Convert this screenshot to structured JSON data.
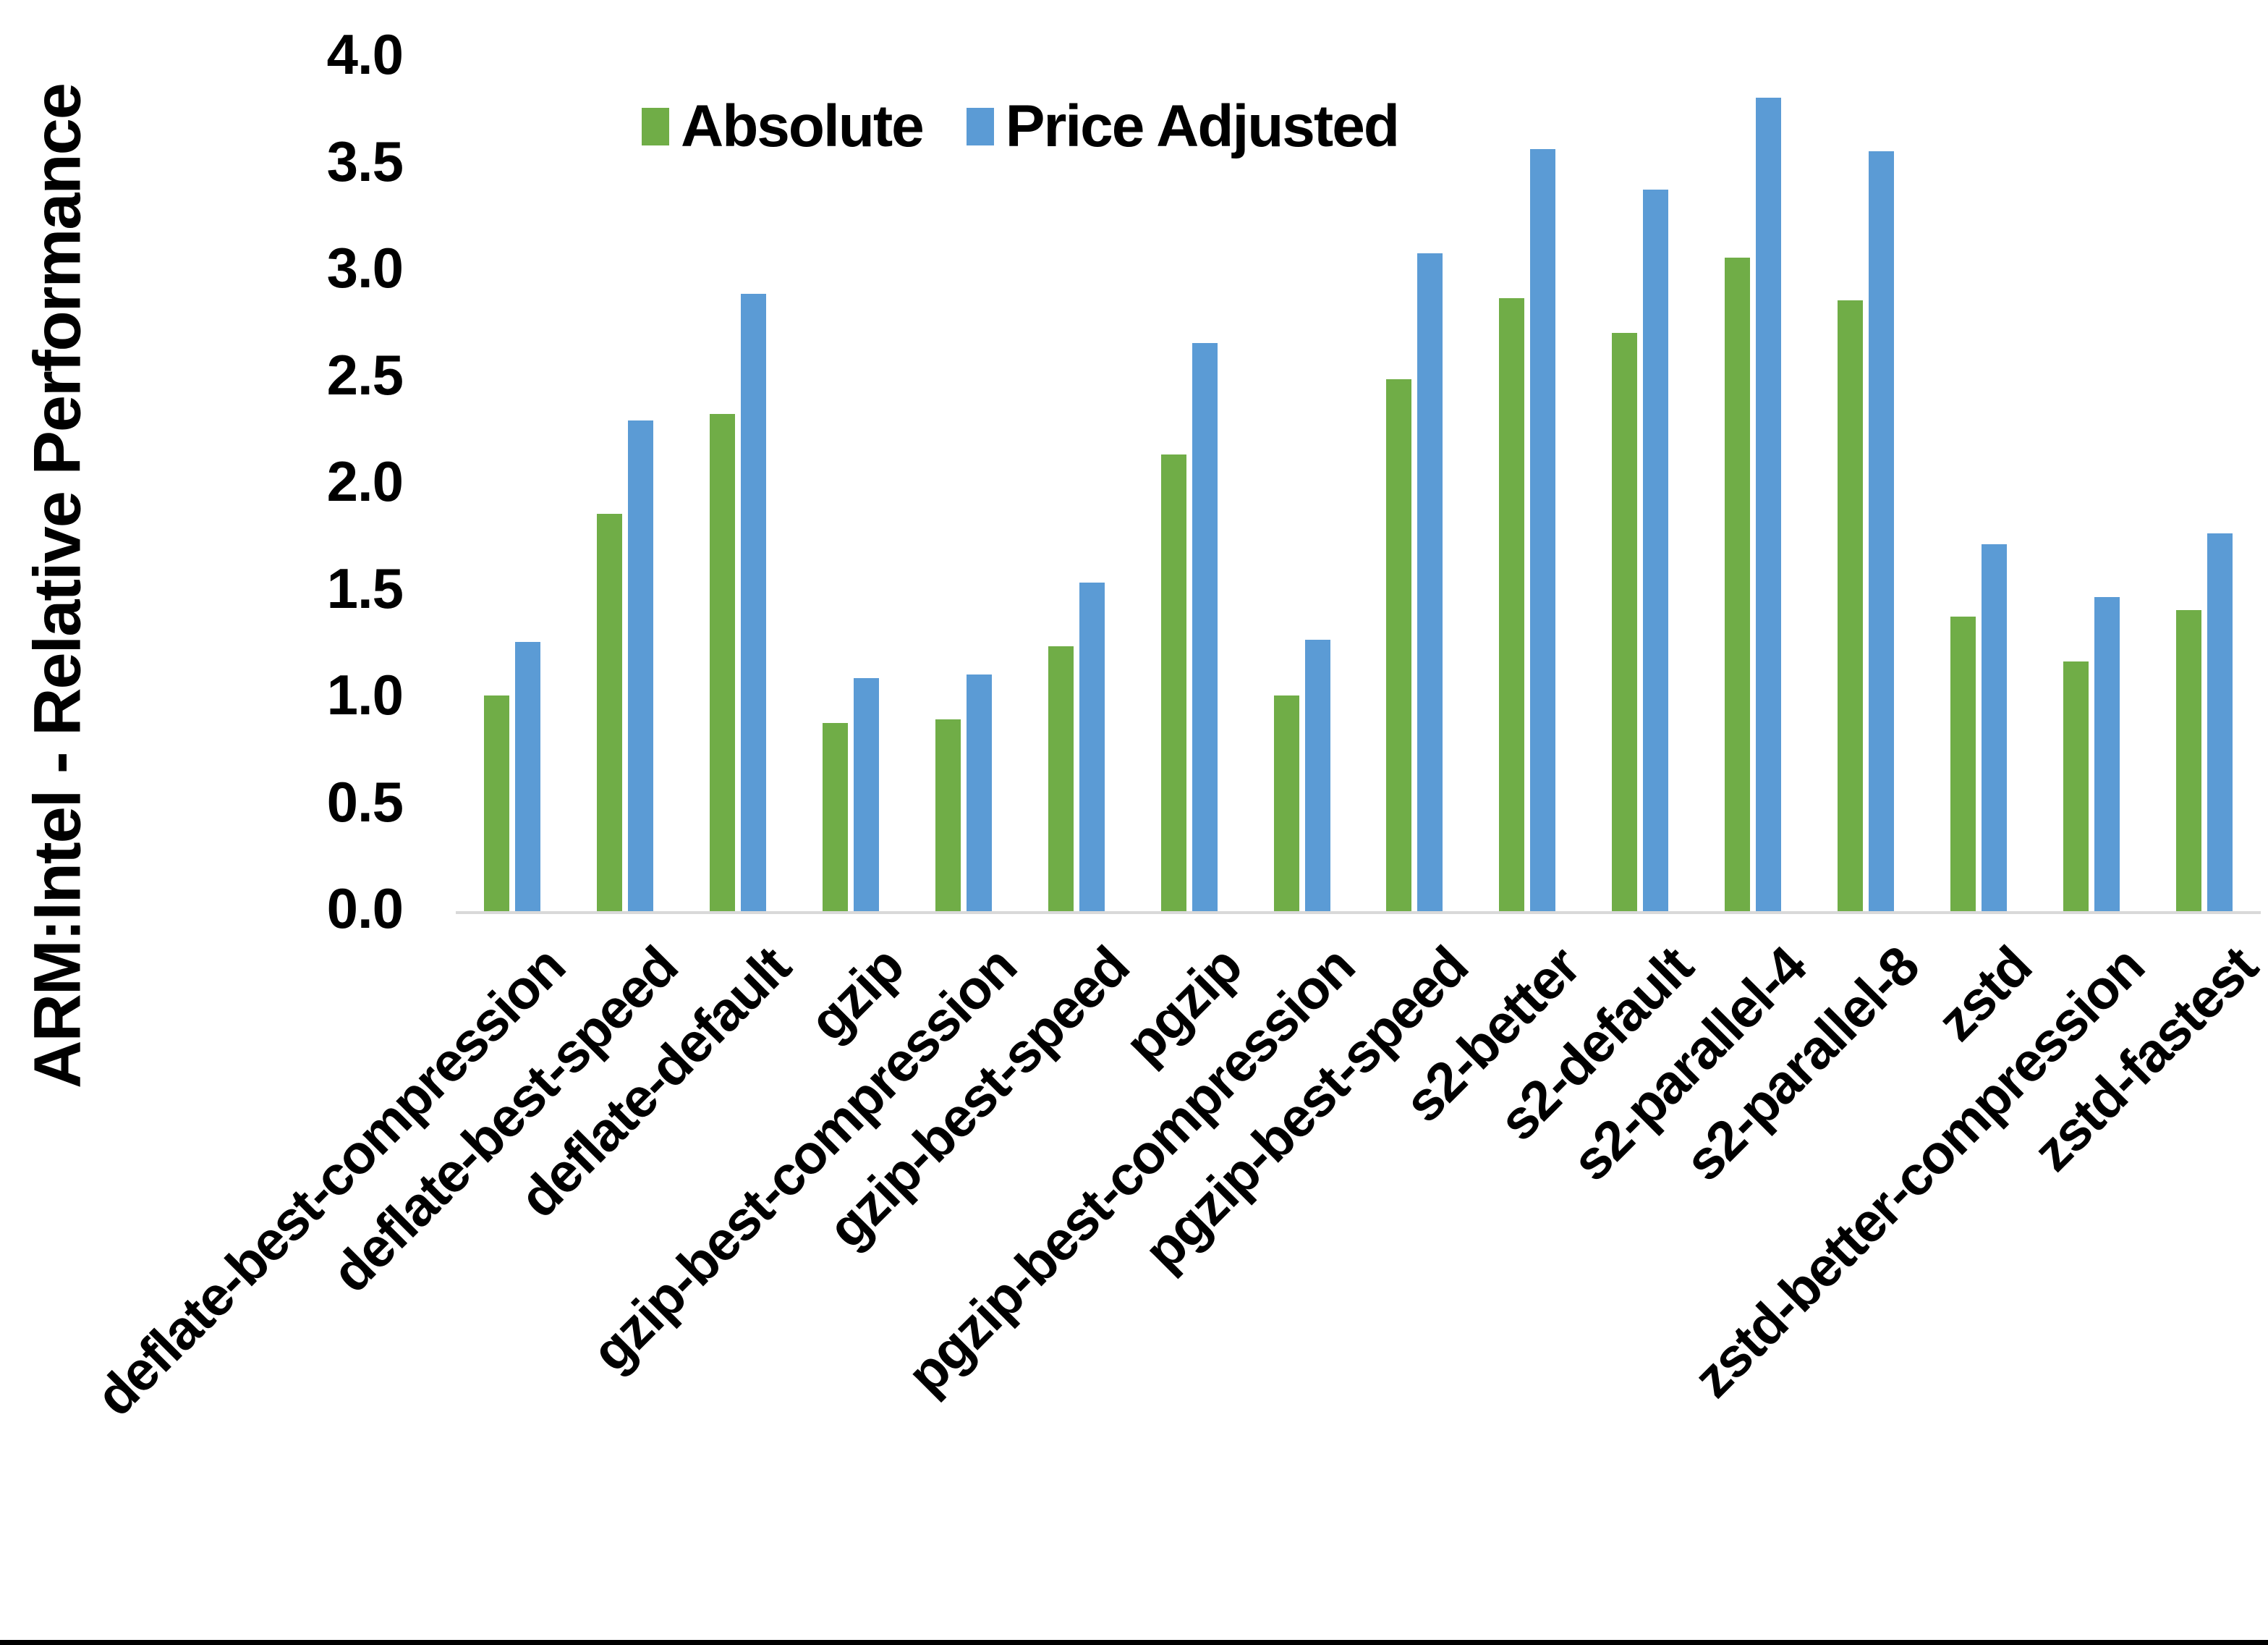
{
  "chart_data": {
    "type": "bar",
    "title": "",
    "xlabel": "",
    "ylabel": "ARM:Intel - Relative Performance",
    "ylim": [
      0.0,
      4.0
    ],
    "ytick_step": 0.5,
    "yticks": [
      "4.0",
      "3.5",
      "3.0",
      "2.5",
      "2.0",
      "1.5",
      "1.0",
      "0.5",
      "0.0"
    ],
    "grid": false,
    "legend_position": "top-center",
    "categories": [
      "deflate-best-compression",
      "deflate-best-speed",
      "deflate-default",
      "gzip",
      "gzip-best-compression",
      "gzip-best-speed",
      "pgzip",
      "pgzip-best-compression",
      "pgzip-best-speed",
      "s2-better",
      "s2-default",
      "s2-parallel-4",
      "s2-parallel-8",
      "zstd",
      "zstd-better-compression",
      "zstd-fastest"
    ],
    "series": [
      {
        "name": "Absolute",
        "color": "#70AD47",
        "values": [
          1.01,
          1.86,
          2.33,
          0.88,
          0.9,
          1.24,
          2.14,
          1.01,
          2.49,
          2.87,
          2.71,
          3.06,
          2.86,
          1.38,
          1.17,
          1.41
        ]
      },
      {
        "name": "Price Adjusted",
        "color": "#5B9BD5",
        "values": [
          1.26,
          2.3,
          2.89,
          1.09,
          1.11,
          1.54,
          2.66,
          1.27,
          3.08,
          3.57,
          3.38,
          3.81,
          3.56,
          1.72,
          1.47,
          1.77
        ]
      }
    ]
  },
  "colors": {
    "background": "#ffffff",
    "axis_line": "#d9d9d9",
    "text": "#000000",
    "bottom_border": "#000000"
  }
}
